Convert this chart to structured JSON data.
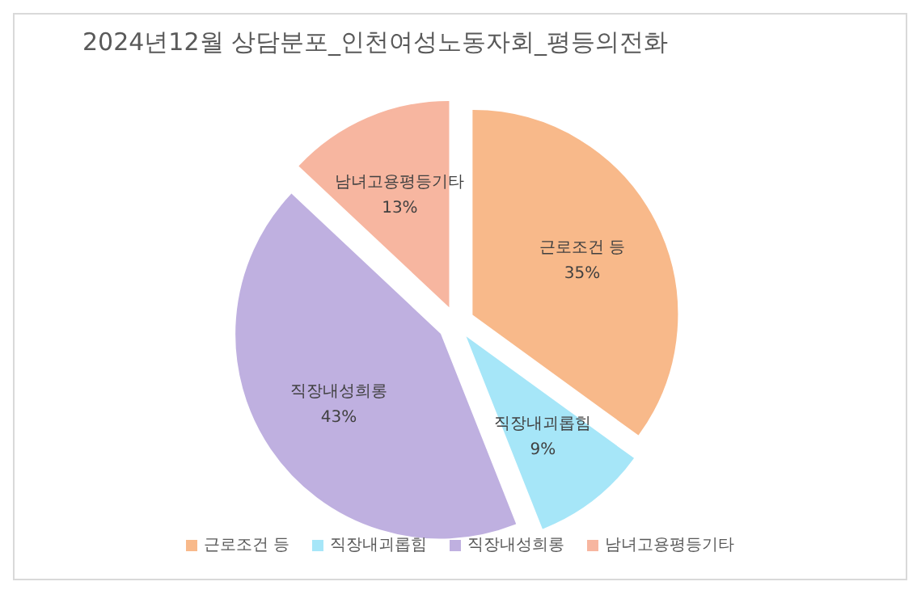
{
  "chart_data": {
    "type": "pie",
    "title": "2024년12월 상담분포_인천여성노동자회_평등의전화",
    "categories": [
      "근로조건 등",
      "직장내괴롭힘",
      "직장내성희롱",
      "남녀고용평등기타"
    ],
    "values": [
      35,
      9,
      43,
      13
    ],
    "colors": [
      "#f8b98a",
      "#a6e6f8",
      "#bfb0e0",
      "#f7b6a0"
    ],
    "value_labels": [
      "35%",
      "9%",
      "43%",
      "13%"
    ],
    "legend": "bottom"
  }
}
